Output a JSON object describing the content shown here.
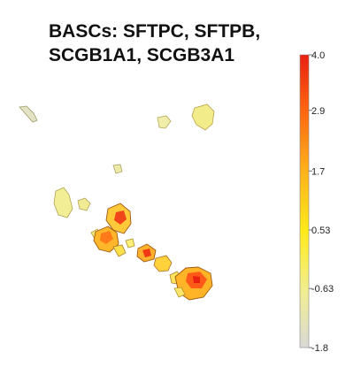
{
  "chart_data": {
    "type": "scatter",
    "title_lines": [
      "BASCs: SFTPC, SFTPB,",
      "SCGB1A1, SCGB3A1"
    ],
    "xlabel": "",
    "ylabel": "",
    "grid": false,
    "axes_visible": false,
    "colorbar": {
      "min": -1.8,
      "max": 4.0,
      "ticks": [
        4.0,
        2.9,
        1.7,
        0.53,
        -0.63,
        -1.8
      ],
      "tick_labels": [
        "4.0",
        "2.9",
        "1.7",
        "0.53",
        "-0.63",
        "-1.8"
      ],
      "colormap": [
        "#d9d9d6",
        "#f2ef8e",
        "#ffea1a",
        "#ffb21c",
        "#ff6a10",
        "#e8200f"
      ]
    }
  }
}
